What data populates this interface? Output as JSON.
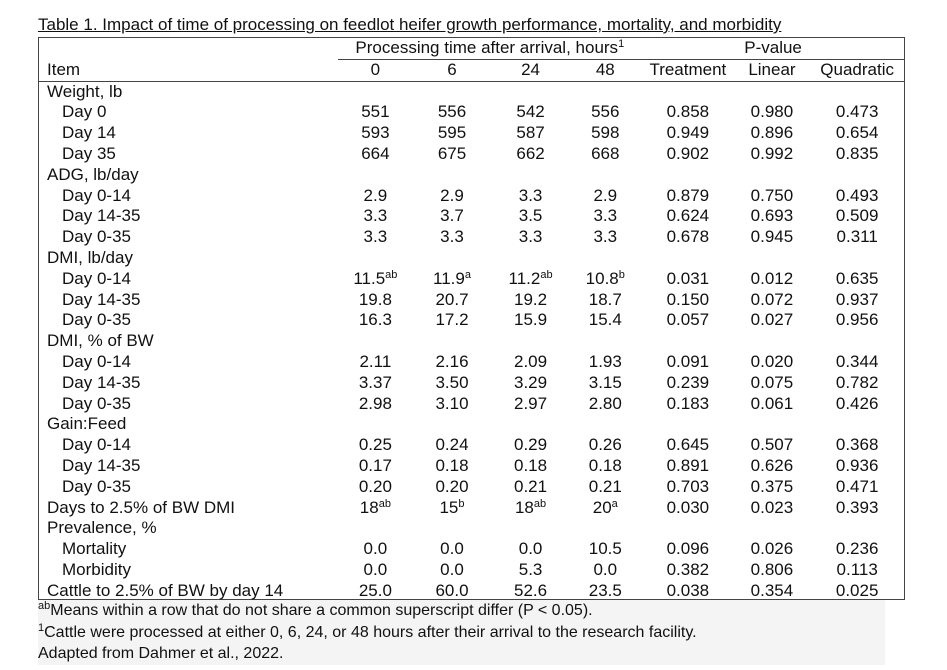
{
  "caption": "Table 1.  Impact of time of processing on feedlot heifer growth performance, mortality, and morbidity",
  "header": {
    "group_processing": "Processing time after arrival, hours",
    "group_processing_sup": "1",
    "group_pvalue": "P-value",
    "item": "Item",
    "cols": [
      "0",
      "6",
      "24",
      "48",
      "Treatment",
      "Linear",
      "Quadratic"
    ]
  },
  "rows": [
    {
      "label": "Weight, lb",
      "section": true
    },
    {
      "label": "Day 0",
      "values": [
        {
          "v": "551"
        },
        {
          "v": "556"
        },
        {
          "v": "542"
        },
        {
          "v": "556"
        },
        {
          "v": "0.858"
        },
        {
          "v": "0.980"
        },
        {
          "v": "0.473"
        }
      ]
    },
    {
      "label": "Day 14",
      "values": [
        {
          "v": "593"
        },
        {
          "v": "595"
        },
        {
          "v": "587"
        },
        {
          "v": "598"
        },
        {
          "v": "0.949"
        },
        {
          "v": "0.896"
        },
        {
          "v": "0.654"
        }
      ]
    },
    {
      "label": "Day 35",
      "values": [
        {
          "v": "664"
        },
        {
          "v": "675"
        },
        {
          "v": "662"
        },
        {
          "v": "668"
        },
        {
          "v": "0.902"
        },
        {
          "v": "0.992"
        },
        {
          "v": "0.835"
        }
      ]
    },
    {
      "label": "ADG, lb/day",
      "section": true
    },
    {
      "label": "Day 0-14",
      "values": [
        {
          "v": "2.9"
        },
        {
          "v": "2.9"
        },
        {
          "v": "3.3"
        },
        {
          "v": "2.9"
        },
        {
          "v": "0.879"
        },
        {
          "v": "0.750"
        },
        {
          "v": "0.493"
        }
      ]
    },
    {
      "label": "Day 14-35",
      "values": [
        {
          "v": "3.3"
        },
        {
          "v": "3.7"
        },
        {
          "v": "3.5"
        },
        {
          "v": "3.3"
        },
        {
          "v": "0.624"
        },
        {
          "v": "0.693"
        },
        {
          "v": "0.509"
        }
      ]
    },
    {
      "label": "Day 0-35",
      "values": [
        {
          "v": "3.3"
        },
        {
          "v": "3.3"
        },
        {
          "v": "3.3"
        },
        {
          "v": "3.3"
        },
        {
          "v": "0.678"
        },
        {
          "v": "0.945"
        },
        {
          "v": "0.311"
        }
      ]
    },
    {
      "label": "DMI, lb/day",
      "section": true
    },
    {
      "label": "Day 0-14",
      "values": [
        {
          "v": "11.5",
          "s": "ab"
        },
        {
          "v": "11.9",
          "s": "a"
        },
        {
          "v": "11.2",
          "s": "ab"
        },
        {
          "v": "10.8",
          "s": "b"
        },
        {
          "v": "0.031"
        },
        {
          "v": "0.012"
        },
        {
          "v": "0.635"
        }
      ]
    },
    {
      "label": "Day 14-35",
      "values": [
        {
          "v": "19.8"
        },
        {
          "v": "20.7"
        },
        {
          "v": "19.2"
        },
        {
          "v": "18.7"
        },
        {
          "v": "0.150"
        },
        {
          "v": "0.072"
        },
        {
          "v": "0.937"
        }
      ]
    },
    {
      "label": "Day 0-35",
      "values": [
        {
          "v": "16.3"
        },
        {
          "v": "17.2"
        },
        {
          "v": "15.9"
        },
        {
          "v": "15.4"
        },
        {
          "v": "0.057"
        },
        {
          "v": "0.027"
        },
        {
          "v": "0.956"
        }
      ]
    },
    {
      "label": "DMI, % of BW",
      "section": true
    },
    {
      "label": "Day 0-14",
      "values": [
        {
          "v": "2.11"
        },
        {
          "v": "2.16"
        },
        {
          "v": "2.09"
        },
        {
          "v": "1.93"
        },
        {
          "v": "0.091"
        },
        {
          "v": "0.020"
        },
        {
          "v": "0.344"
        }
      ]
    },
    {
      "label": "Day 14-35",
      "values": [
        {
          "v": "3.37"
        },
        {
          "v": "3.50"
        },
        {
          "v": "3.29"
        },
        {
          "v": "3.15"
        },
        {
          "v": "0.239"
        },
        {
          "v": "0.075"
        },
        {
          "v": "0.782"
        }
      ]
    },
    {
      "label": "Day 0-35",
      "values": [
        {
          "v": "2.98"
        },
        {
          "v": "3.10"
        },
        {
          "v": "2.97"
        },
        {
          "v": "2.80"
        },
        {
          "v": "0.183"
        },
        {
          "v": "0.061"
        },
        {
          "v": "0.426"
        }
      ]
    },
    {
      "label": "Gain:Feed",
      "section": true
    },
    {
      "label": "Day 0-14",
      "values": [
        {
          "v": "0.25"
        },
        {
          "v": "0.24"
        },
        {
          "v": "0.29"
        },
        {
          "v": "0.26"
        },
        {
          "v": "0.645"
        },
        {
          "v": "0.507"
        },
        {
          "v": "0.368"
        }
      ]
    },
    {
      "label": "Day 14-35",
      "values": [
        {
          "v": "0.17"
        },
        {
          "v": "0.18"
        },
        {
          "v": "0.18"
        },
        {
          "v": "0.18"
        },
        {
          "v": "0.891"
        },
        {
          "v": "0.626"
        },
        {
          "v": "0.936"
        }
      ]
    },
    {
      "label": "Day 0-35",
      "values": [
        {
          "v": "0.20"
        },
        {
          "v": "0.20"
        },
        {
          "v": "0.21"
        },
        {
          "v": "0.21"
        },
        {
          "v": "0.703"
        },
        {
          "v": "0.375"
        },
        {
          "v": "0.471"
        }
      ]
    },
    {
      "label": "Days to 2.5% of BW DMI",
      "values": [
        {
          "v": "18",
          "s": "ab"
        },
        {
          "v": "15",
          "s": "b"
        },
        {
          "v": "18",
          "s": "ab"
        },
        {
          "v": "20",
          "s": "a"
        },
        {
          "v": "0.030"
        },
        {
          "v": "0.023"
        },
        {
          "v": "0.393"
        }
      ]
    },
    {
      "label": "Prevalence, %",
      "section": true
    },
    {
      "label": "Mortality",
      "values": [
        {
          "v": "0.0"
        },
        {
          "v": "0.0"
        },
        {
          "v": "0.0"
        },
        {
          "v": "10.5"
        },
        {
          "v": "0.096"
        },
        {
          "v": "0.026"
        },
        {
          "v": "0.236"
        }
      ]
    },
    {
      "label": "Morbidity",
      "values": [
        {
          "v": "0.0"
        },
        {
          "v": "0.0"
        },
        {
          "v": "5.3"
        },
        {
          "v": "0.0"
        },
        {
          "v": "0.382"
        },
        {
          "v": "0.806"
        },
        {
          "v": "0.113"
        }
      ]
    },
    {
      "label": "Cattle to 2.5% of BW by day 14",
      "values": [
        {
          "v": "25.0"
        },
        {
          "v": "60.0"
        },
        {
          "v": "52.6"
        },
        {
          "v": "23.5"
        },
        {
          "v": "0.038"
        },
        {
          "v": "0.354"
        },
        {
          "v": "0.025"
        }
      ],
      "indent": true
    }
  ],
  "notes": [
    {
      "sup": "ab",
      "text": "Means within a row that do not share a common superscript differ (P < 0.05)."
    },
    {
      "sup": "1",
      "text": "Cattle were processed at either 0, 6, 24, or 48 hours after their arrival to the research facility."
    },
    {
      "sup": "",
      "text": "Adapted from Dahmer et al., 2022."
    }
  ]
}
